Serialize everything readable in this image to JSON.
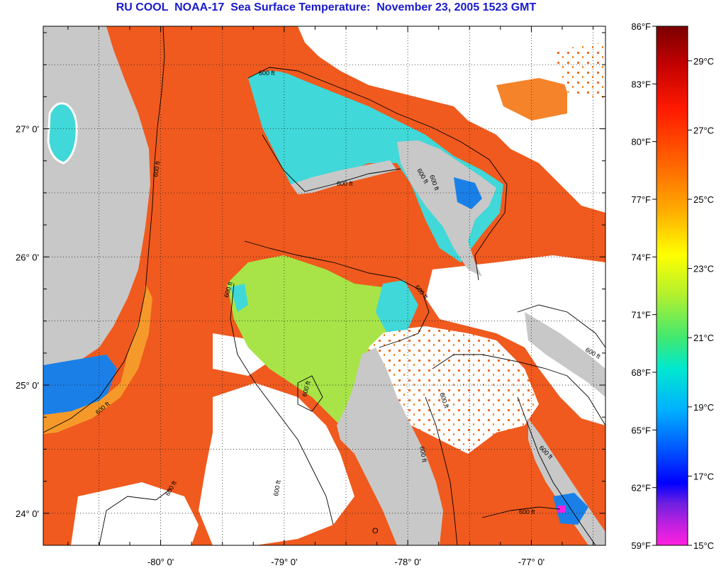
{
  "title": "RU COOL  NOAA-17  Sea Surface Temperature:  November 23, 2005 1523 GMT",
  "map": {
    "lon_range": [
      -80.95,
      -76.4
    ],
    "lat_range": [
      23.75,
      27.8
    ],
    "lat_ticks": [
      {
        "value": 27.0,
        "label": "27° 0'"
      },
      {
        "value": 26.0,
        "label": "26° 0'"
      },
      {
        "value": 25.0,
        "label": "25° 0'"
      },
      {
        "value": 24.0,
        "label": "24° 0'"
      }
    ],
    "lon_ticks": [
      {
        "value": -80.0,
        "label": "-80° 0'"
      },
      {
        "value": -79.0,
        "label": "-79° 0'"
      },
      {
        "value": -78.0,
        "label": "-78° 0'"
      },
      {
        "value": -77.0,
        "label": "-77° 0'"
      }
    ],
    "contour_label": "600 ft",
    "marker_label": "O",
    "colors": {
      "land": "#c8c8c8",
      "cloud": "#ffffff",
      "warm_water": "#f05a1e",
      "deep_water": "#ee6a20",
      "bank_water": "#a8e448",
      "shallow_water": "#40d8d8",
      "coastal_cool": "#1a80e8"
    }
  },
  "colorbar": {
    "fahrenheit_labels": [
      "86°F",
      "83°F",
      "80°F",
      "77°F",
      "74°F",
      "71°F",
      "68°F",
      "65°F",
      "62°F",
      "59°F"
    ],
    "celsius_labels": [
      "29°C",
      "27°C",
      "25°C",
      "23°C",
      "21°C",
      "19°C",
      "17°C",
      "15°C"
    ],
    "celsius_values": [
      29,
      27,
      25,
      23,
      21,
      19,
      17,
      15
    ],
    "fahrenheit_range": [
      59,
      86
    ]
  }
}
